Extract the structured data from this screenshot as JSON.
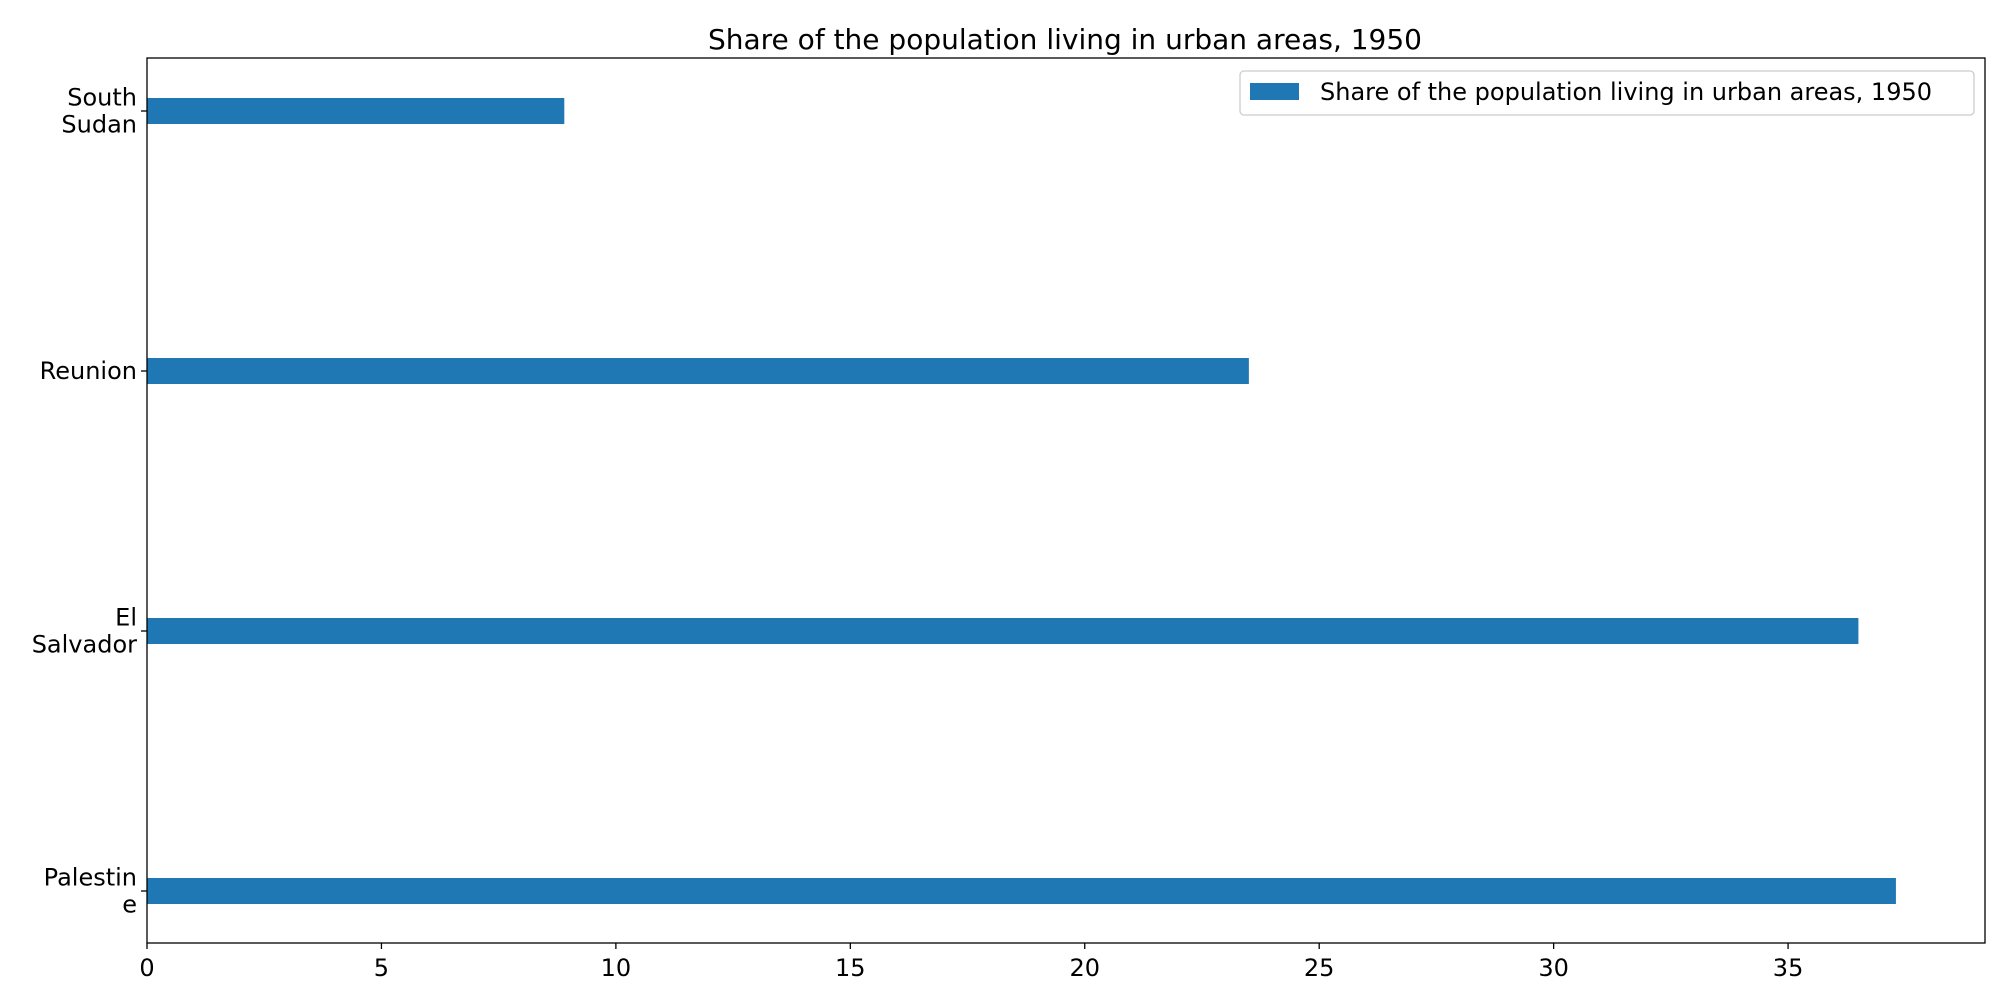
{
  "chart_data": {
    "type": "bar",
    "orientation": "horizontal",
    "title": "Share of the population living in urban areas, 1950",
    "xlabel": "",
    "ylabel": "",
    "categories": [
      [
        "South",
        "Sudan"
      ],
      [
        "Reunion"
      ],
      [
        "El",
        "Salvador"
      ],
      [
        "Palestin",
        "e"
      ]
    ],
    "series": [
      {
        "name": "Share of the population living in urban areas, 1950",
        "values": [
          8.9,
          23.5,
          36.5,
          37.3
        ],
        "color": "#1f77b4"
      }
    ],
    "xlim": [
      0,
      39.2
    ],
    "xticks": [
      "0",
      "5",
      "10",
      "15",
      "20",
      "25",
      "30",
      "35"
    ],
    "grid": false,
    "legend_position": "top-right"
  }
}
